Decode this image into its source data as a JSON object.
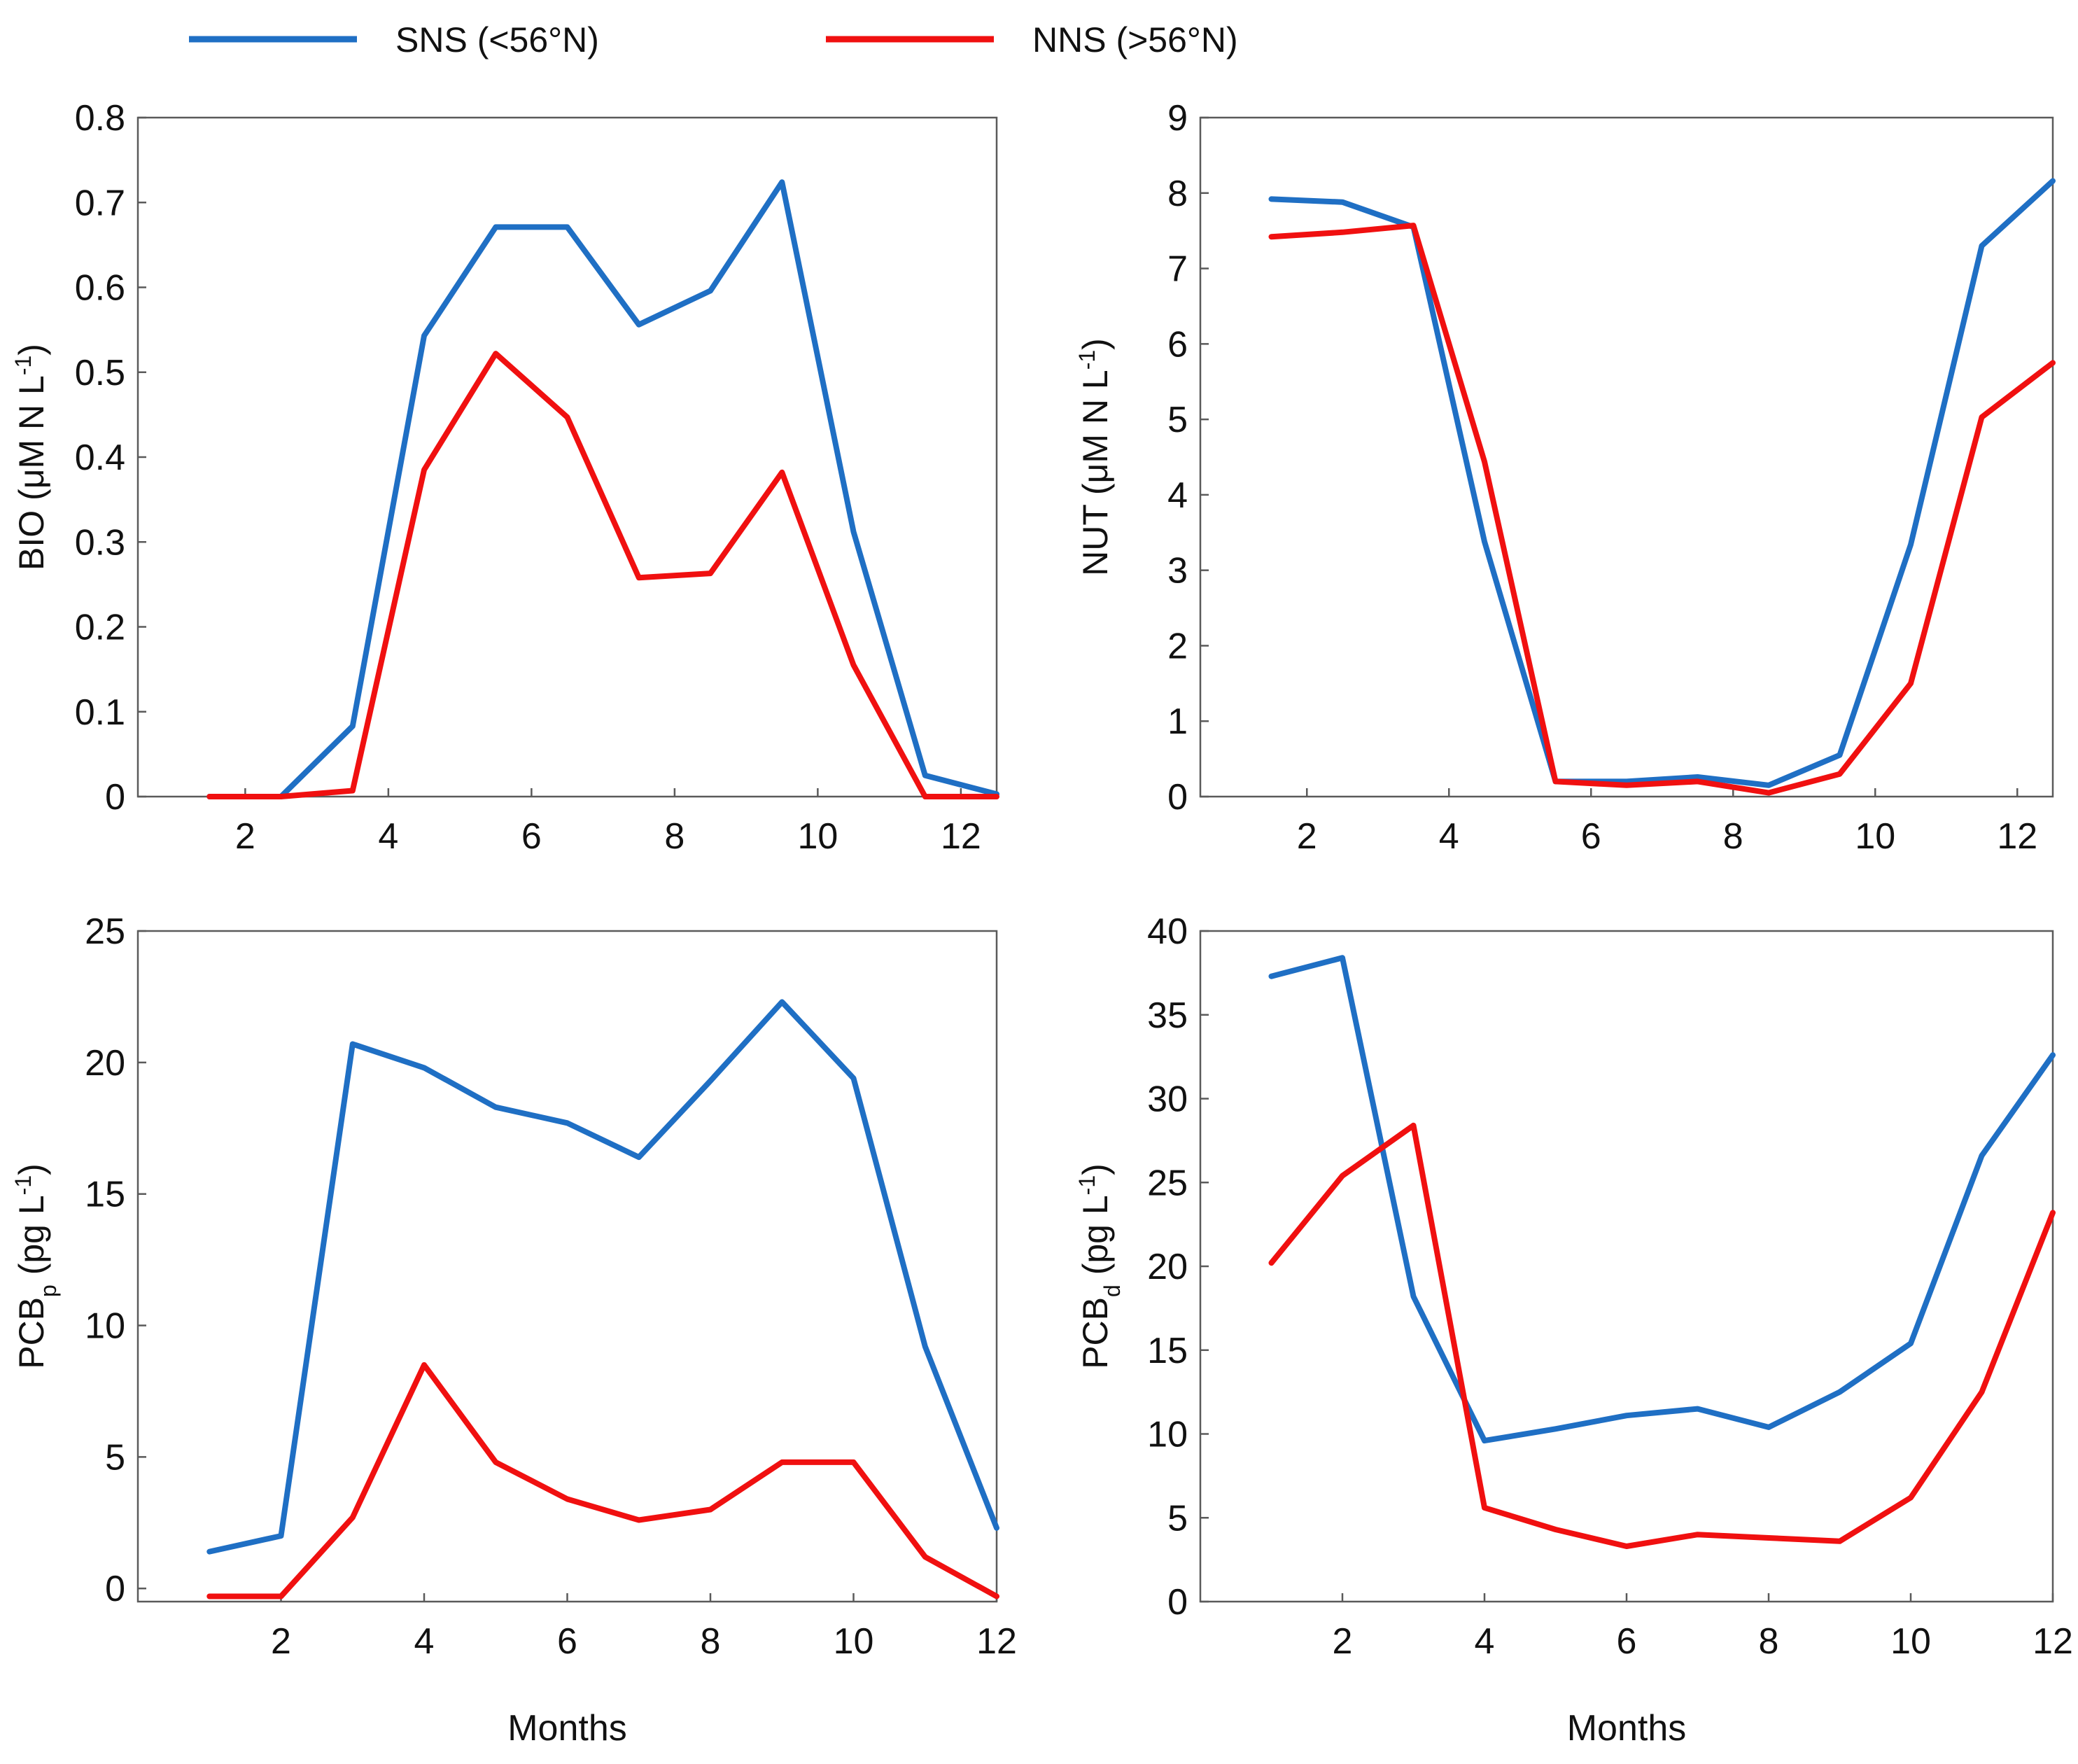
{
  "legend": {
    "placement": "top",
    "entries": [
      {
        "name": "SNS (<56°N)",
        "color": "#1f6fc4"
      },
      {
        "name": "NNS (>56°N)",
        "color": "#f01010"
      }
    ]
  },
  "colors": {
    "sns": "#1f6fc4",
    "nns": "#f01010",
    "axis": "#5a5a5a",
    "text": "#111111"
  },
  "chart_data": [
    {
      "type": "line",
      "title": "",
      "xlabel": "",
      "ylabel": "BIO (μM N L⁻¹)",
      "xlim": [
        0.5,
        12.5
      ],
      "ylim": [
        0,
        0.8
      ],
      "xticks": [
        2,
        4,
        6,
        8,
        10,
        12
      ],
      "yticks": [
        0,
        0.1,
        0.2,
        0.3,
        0.4,
        0.5,
        0.6,
        0.7,
        0.8
      ],
      "ytick_labels": [
        "0",
        "0.1",
        "0.2",
        "0.3",
        "0.4",
        "0.5",
        "0.6",
        "0.7",
        "0.8"
      ],
      "grid": false,
      "series": [
        {
          "name": "SNS (<56°N)",
          "x": [
            1.5,
            2.5,
            3.5,
            4.5,
            5.5,
            6.5,
            7.5,
            8.5,
            9.5,
            10.5,
            11.5,
            12.5
          ],
          "values": [
            0,
            0,
            0.083,
            0.543,
            0.671,
            0.671,
            0.556,
            0.596,
            0.724,
            0.312,
            0.025,
            0.003
          ]
        },
        {
          "name": "NNS (>56°N)",
          "x": [
            1.5,
            2.5,
            3.5,
            4.5,
            5.5,
            6.5,
            7.5,
            8.5,
            9.5,
            10.5,
            11.5,
            12.5
          ],
          "values": [
            0,
            0,
            0.007,
            0.385,
            0.522,
            0.447,
            0.258,
            0.263,
            0.382,
            0.155,
            0,
            0
          ]
        }
      ]
    },
    {
      "type": "line",
      "title": "",
      "xlabel": "",
      "ylabel": "NUT (μM N L⁻¹)",
      "xlim": [
        0.5,
        12.5
      ],
      "ylim": [
        0,
        9
      ],
      "xticks": [
        2,
        4,
        6,
        8,
        10,
        12
      ],
      "yticks": [
        0,
        1,
        2,
        3,
        4,
        5,
        6,
        7,
        8,
        9
      ],
      "ytick_labels": [
        "0",
        "1",
        "2",
        "3",
        "4",
        "5",
        "6",
        "7",
        "8",
        "9"
      ],
      "grid": false,
      "series": [
        {
          "name": "SNS (<56°N)",
          "x": [
            1.5,
            2.5,
            3.5,
            4.5,
            5.5,
            6.5,
            7.5,
            8.5,
            9.5,
            10.5,
            11.5,
            12.5
          ],
          "values": [
            7.92,
            7.88,
            7.55,
            3.38,
            0.2,
            0.2,
            0.26,
            0.15,
            0.55,
            3.34,
            7.3,
            8.16
          ]
        },
        {
          "name": "NNS (>56°N)",
          "x": [
            1.5,
            2.5,
            3.5,
            4.5,
            5.5,
            6.5,
            7.5,
            8.5,
            9.5,
            10.5,
            11.5,
            12.5
          ],
          "values": [
            7.42,
            7.48,
            7.57,
            4.44,
            0.2,
            0.15,
            0.2,
            0.05,
            0.3,
            1.5,
            5.03,
            5.75
          ]
        }
      ]
    },
    {
      "type": "line",
      "title": "",
      "xlabel": "Months",
      "ylabel": "PCBₚ (pg L⁻¹)",
      "xlim": [
        0,
        12
      ],
      "ylim": [
        -0.5,
        25
      ],
      "xticks": [
        2,
        4,
        6,
        8,
        10,
        12
      ],
      "yticks": [
        0,
        5,
        10,
        15,
        20,
        25
      ],
      "ytick_labels": [
        "0",
        "5",
        "10",
        "15",
        "20",
        "25"
      ],
      "grid": false,
      "series": [
        {
          "name": "SNS (<56°N)",
          "x": [
            1,
            2,
            3,
            4,
            5,
            6,
            7,
            8,
            9,
            10,
            11,
            12
          ],
          "values": [
            1.4,
            2.0,
            20.7,
            19.8,
            18.3,
            17.7,
            16.4,
            19.3,
            22.3,
            19.4,
            9.2,
            2.3
          ]
        },
        {
          "name": "NNS (>56°N)",
          "x": [
            1,
            2,
            3,
            4,
            5,
            6,
            7,
            8,
            9,
            10,
            11,
            12
          ],
          "values": [
            -0.3,
            -0.3,
            2.7,
            8.5,
            4.8,
            3.4,
            2.6,
            3.0,
            4.8,
            4.8,
            1.2,
            -0.3
          ]
        }
      ]
    },
    {
      "type": "line",
      "title": "",
      "xlabel": "Months",
      "ylabel": "PCBd (pg L⁻¹)",
      "xlim": [
        0,
        12
      ],
      "ylim": [
        0,
        40
      ],
      "xticks": [
        2,
        4,
        6,
        8,
        10,
        12
      ],
      "yticks": [
        0,
        5,
        10,
        15,
        20,
        25,
        30,
        35,
        40
      ],
      "ytick_labels": [
        "0",
        "5",
        "10",
        "15",
        "20",
        "25",
        "30",
        "35",
        "40"
      ],
      "grid": false,
      "series": [
        {
          "name": "SNS (<56°N)",
          "x": [
            1,
            2,
            3,
            4,
            5,
            6,
            7,
            8,
            9,
            10,
            11,
            12
          ],
          "values": [
            37.3,
            38.4,
            18.2,
            9.6,
            10.3,
            11.1,
            11.5,
            10.4,
            12.5,
            15.4,
            26.6,
            32.6
          ]
        },
        {
          "name": "NNS (>56°N)",
          "x": [
            1,
            2,
            3,
            4,
            5,
            6,
            7,
            8,
            9,
            10,
            11,
            12
          ],
          "values": [
            20.2,
            25.4,
            28.4,
            5.6,
            4.3,
            3.3,
            4.0,
            3.8,
            3.6,
            6.2,
            12.5,
            23.2
          ]
        }
      ]
    }
  ]
}
